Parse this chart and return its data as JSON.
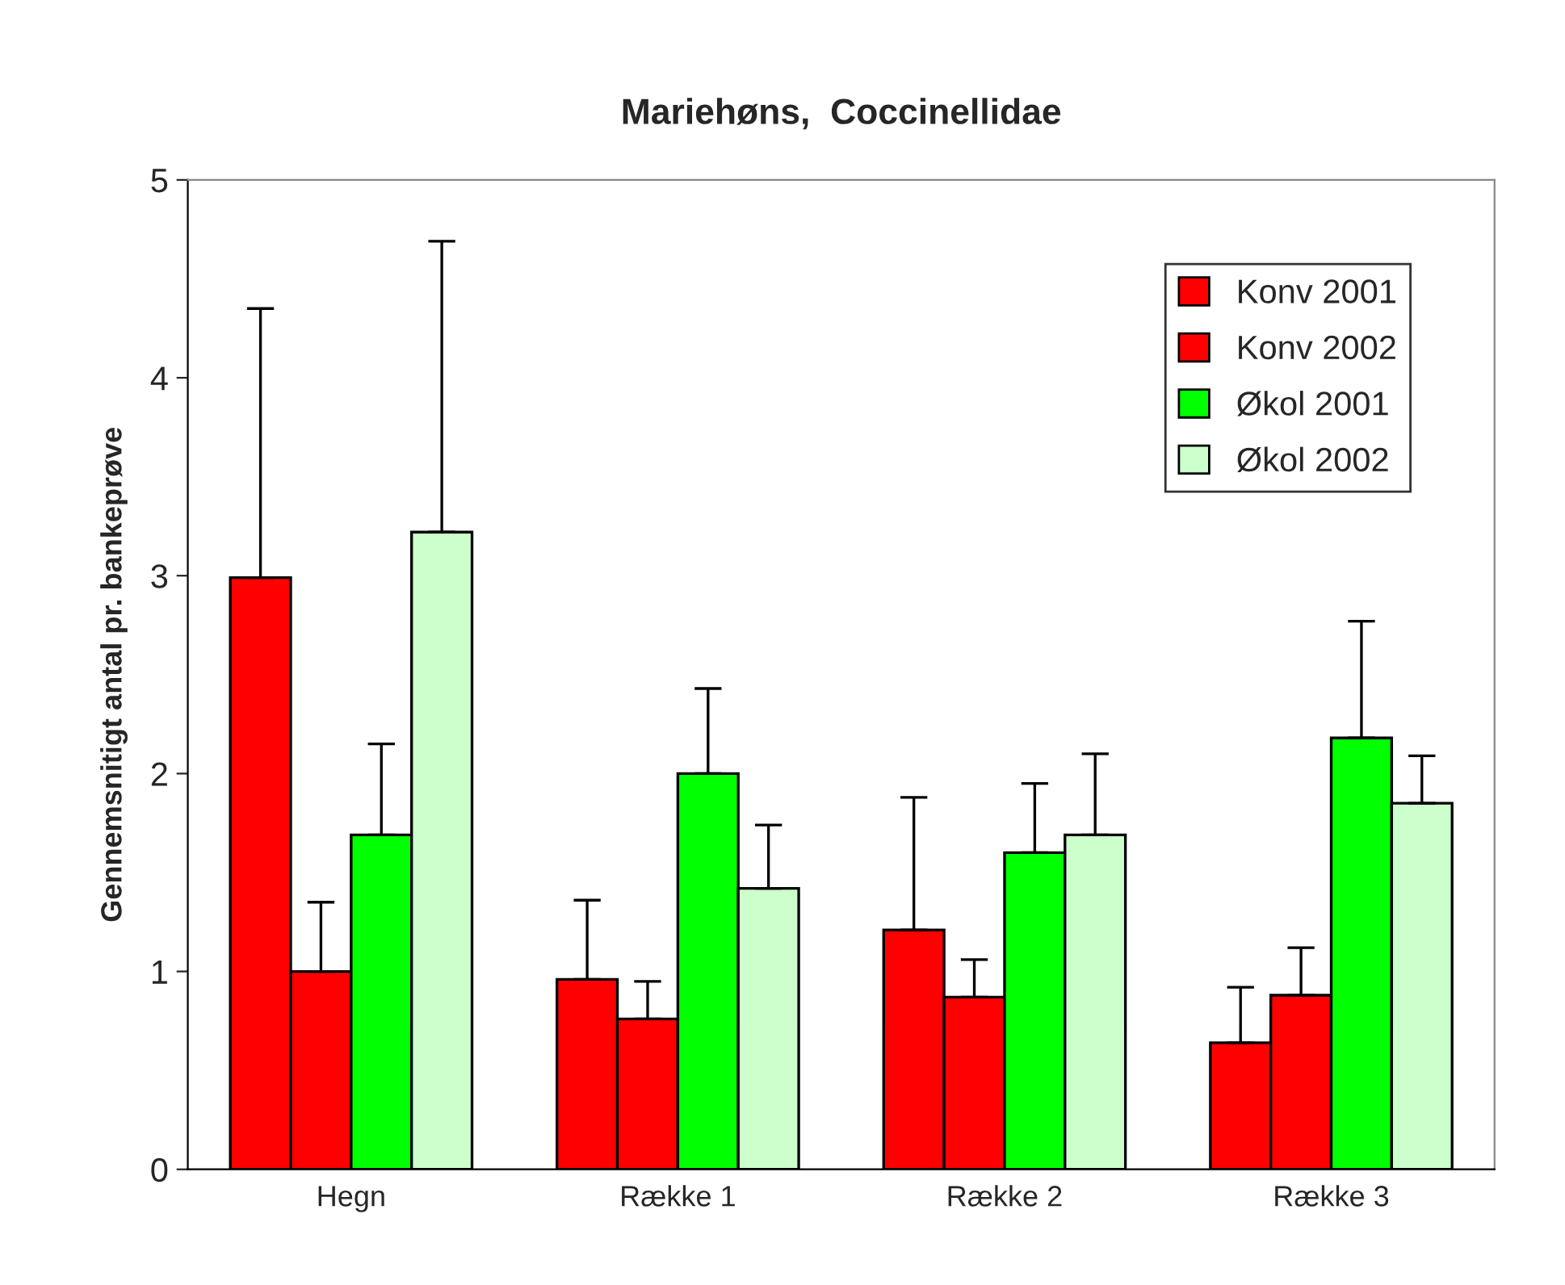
{
  "chart_data": {
    "type": "bar",
    "title": "Mariehøns,  Coccinellidae",
    "ylabel": "Gennemsnitigt antal pr. bankeprøve",
    "categories": [
      "Hegn",
      "Række 1",
      "Række 2",
      "Række 3"
    ],
    "series": [
      {
        "name": "Konv 2001",
        "color": "#ff0000",
        "values": [
          2.99,
          0.96,
          1.21,
          0.64
        ],
        "errors": [
          [
            2.99,
            4.35
          ],
          [
            0.96,
            1.36
          ],
          [
            1.21,
            1.88
          ],
          [
            0.64,
            0.92
          ]
        ]
      },
      {
        "name": "Konv 2002",
        "color": "#ff0000",
        "values": [
          1.0,
          0.76,
          0.87,
          0.88
        ],
        "errors": [
          [
            1.0,
            1.35
          ],
          [
            0.76,
            0.95
          ],
          [
            0.87,
            1.06
          ],
          [
            0.88,
            1.12
          ]
        ]
      },
      {
        "name": "Økol 2001",
        "color": "#00ff00",
        "values": [
          1.69,
          2.0,
          1.6,
          2.18
        ],
        "errors": [
          [
            1.69,
            2.15
          ],
          [
            2.0,
            2.43
          ],
          [
            1.6,
            1.95
          ],
          [
            2.18,
            2.77
          ]
        ]
      },
      {
        "name": "Økol 2002",
        "color": "#ccffcc",
        "values": [
          3.22,
          1.42,
          1.69,
          1.85
        ],
        "errors": [
          [
            3.22,
            4.69
          ],
          [
            1.42,
            1.74
          ],
          [
            1.69,
            2.1
          ],
          [
            1.85,
            2.09
          ]
        ]
      }
    ],
    "ylim": [
      0,
      5
    ],
    "yticks": [
      0,
      1,
      2,
      3,
      4,
      5
    ],
    "grid": false,
    "legend": "top right"
  }
}
